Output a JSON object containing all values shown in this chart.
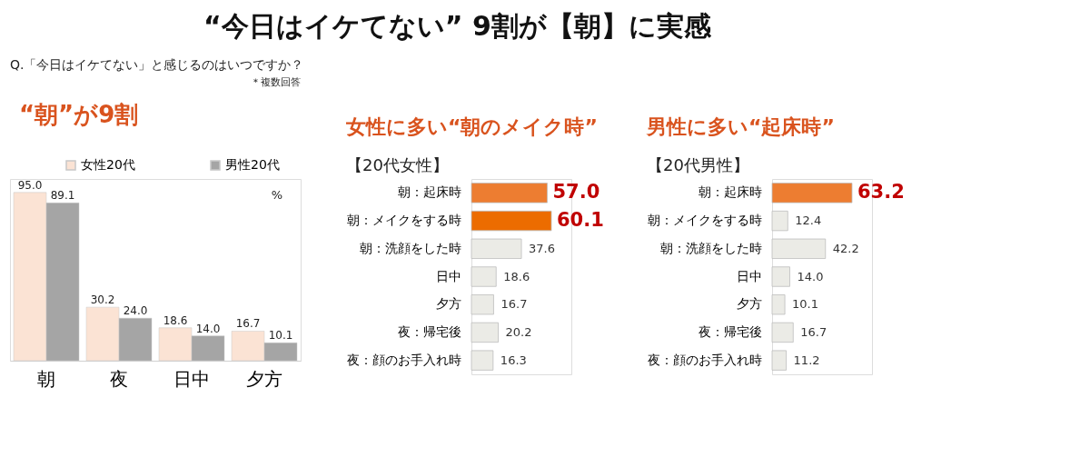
{
  "chart_data": [
    {
      "type": "bar",
      "title": "“今日はイケてない” 9割が【朝】に実感",
      "subtitle": "Q.「今日はイケてない」と感じるのはいつですか？",
      "annotations": [
        "“朝”が9割",
        "＊複数回答",
        "%"
      ],
      "categories": [
        "朝",
        "夜",
        "日中",
        "夕方"
      ],
      "series": [
        {
          "name": "女性20代",
          "color": "#fbe3d4",
          "values": [
            95.0,
            30.2,
            18.6,
            16.7
          ],
          "value_labels": [
            "95.0",
            "30.2",
            "18.6",
            "16.7"
          ]
        },
        {
          "name": "男性20代",
          "color": "#a5a5a5",
          "values": [
            89.1,
            24.0,
            14.0,
            10.1
          ],
          "value_labels": [
            "89.1",
            "24.0",
            "14.0",
            "10.1"
          ]
        }
      ],
      "legend": "top",
      "grid": false
    },
    {
      "type": "bar",
      "orientation": "horizontal",
      "annotations": [
        "女性に多い“朝のメイク時”"
      ],
      "subtitle": "【20代女性】",
      "categories": [
        "朝：起床時",
        "朝：メイクをする時",
        "朝：洗顔をした時",
        "日中",
        "夕方",
        "夜：帰宅後",
        "夜：顔のお手入れ時"
      ],
      "values": [
        57.0,
        60.1,
        37.6,
        18.6,
        16.7,
        20.2,
        16.3
      ],
      "value_labels": [
        "57.0",
        "60.1",
        "37.6",
        "18.6",
        "16.7",
        "20.2",
        "16.3"
      ],
      "colors": [
        "#ed7d31",
        "#ec6c00",
        "#ebebe6",
        "#ebebe6",
        "#ebebe6",
        "#ebebe6",
        "#ebebe6"
      ],
      "grid": false
    },
    {
      "type": "bar",
      "orientation": "horizontal",
      "annotations": [
        "男性に多い“起床時”"
      ],
      "subtitle": "【20代男性】",
      "categories": [
        "朝：起床時",
        "朝：メイクをする時",
        "朝：洗顔をした時",
        "日中",
        "夕方",
        "夜：帰宅後",
        "夜：顔のお手入れ時"
      ],
      "values": [
        63.2,
        12.4,
        42.2,
        14.0,
        10.1,
        16.7,
        11.2
      ],
      "value_labels": [
        "63.2",
        "12.4",
        "42.2",
        "14.0",
        "10.1",
        "16.7",
        "11.2"
      ],
      "colors": [
        "#ed7d31",
        "#ebebe6",
        "#ebebe6",
        "#ebebe6",
        "#ebebe6",
        "#ebebe6",
        "#ebebe6"
      ],
      "grid": false
    }
  ]
}
